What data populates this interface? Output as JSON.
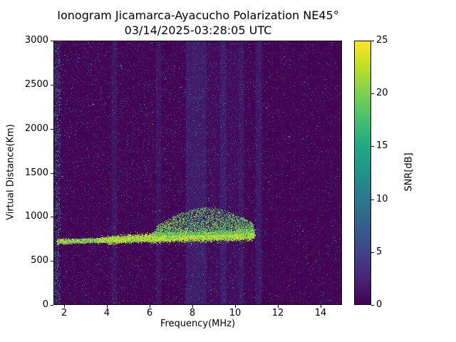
{
  "figure": {
    "title": "Ionogram Jicamarca-Ayacucho Polarization NE45°",
    "subtitle": "03/14/2025-03:28:05 UTC"
  },
  "chart_data": {
    "type": "heatmap",
    "title": "Ionogram Jicamarca-Ayacucho Polarization NE45°",
    "subtitle": "03/14/2025-03:28:05 UTC",
    "xlabel": "Frequency(MHz)",
    "ylabel": "Virtual Distance(Km)",
    "xlim": [
      1.5,
      15.0
    ],
    "ylim": [
      0,
      3000
    ],
    "x_ticks": [
      2,
      4,
      6,
      8,
      10,
      12,
      14
    ],
    "y_ticks": [
      0,
      500,
      1000,
      1500,
      2000,
      2500,
      3000
    ],
    "grid": false,
    "colorbar": {
      "label": "SNR[dB]",
      "min": 0,
      "max": 25,
      "ticks": [
        0,
        5,
        10,
        15,
        20,
        25
      ],
      "colormap": "viridis",
      "position": "right"
    },
    "background": {
      "snr_db": 0,
      "description": "dark viridis (0 dB) background with sparse random speckle noise 0-15 dB over full frequency/height range"
    },
    "echo_trace": {
      "description": "F-region echo trace, strong SNR 20-25 dB (yellow), from ~1.7 to ~10.9 MHz near 720-800 km virtual distance",
      "freq_range_mhz": [
        1.7,
        10.9
      ],
      "points": [
        {
          "freq_mhz": 1.7,
          "virtual_km": 720
        },
        {
          "freq_mhz": 3.0,
          "virtual_km": 725
        },
        {
          "freq_mhz": 4.0,
          "virtual_km": 735
        },
        {
          "freq_mhz": 5.0,
          "virtual_km": 748
        },
        {
          "freq_mhz": 6.0,
          "virtual_km": 758
        },
        {
          "freq_mhz": 7.0,
          "virtual_km": 768
        },
        {
          "freq_mhz": 8.0,
          "virtual_km": 772
        },
        {
          "freq_mhz": 9.0,
          "virtual_km": 778
        },
        {
          "freq_mhz": 10.0,
          "virtual_km": 784
        },
        {
          "freq_mhz": 10.9,
          "virtual_km": 800
        }
      ]
    },
    "spread_f": {
      "description": "diffuse spread-F scatter (10-25 dB green/teal speckle) above the trace up to ~1100 km",
      "freq_range_mhz": [
        6.3,
        10.85
      ],
      "max_km_above_trace": 310
    },
    "interference_bands": [
      {
        "mhz": [
          4.22,
          4.48
        ],
        "alpha": 0.22
      },
      {
        "mhz": [
          6.3,
          6.55
        ],
        "alpha": 0.2
      },
      {
        "mhz": [
          7.7,
          8.65
        ],
        "alpha": 0.22
      },
      {
        "mhz": [
          7.7,
          10.45
        ],
        "alpha": 0.1
      },
      {
        "mhz": [
          9.3,
          9.6
        ],
        "alpha": 0.22
      },
      {
        "mhz": [
          10.15,
          10.38
        ],
        "alpha": 0.16
      },
      {
        "mhz": [
          10.95,
          11.25
        ],
        "alpha": 0.26
      }
    ]
  },
  "colors": {
    "figure_background": "#ffffff",
    "text": "#000000",
    "axis": "#000000",
    "viridis": [
      "#440154",
      "#482475",
      "#414487",
      "#355f8d",
      "#2a788e",
      "#21918c",
      "#22a884",
      "#44bf70",
      "#7ad151",
      "#bddf26",
      "#fde725"
    ]
  }
}
